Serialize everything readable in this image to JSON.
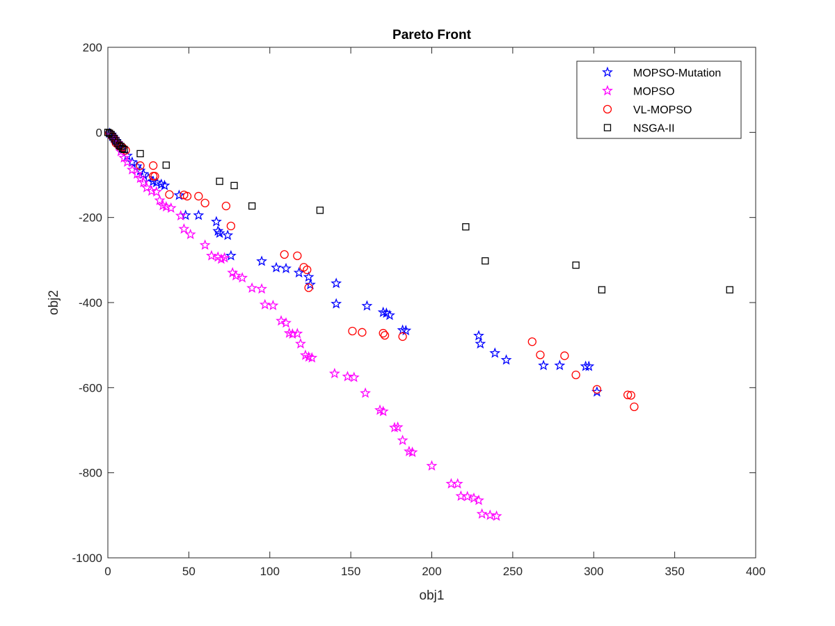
{
  "chart_data": {
    "type": "scatter",
    "title": "Pareto Front",
    "xlabel": "obj1",
    "ylabel": "obj2",
    "xlim": [
      0,
      400
    ],
    "ylim": [
      -1000,
      200
    ],
    "xticks": [
      0,
      50,
      100,
      150,
      200,
      250,
      300,
      350,
      400
    ],
    "yticks": [
      200,
      0,
      -200,
      -400,
      -600,
      -800,
      -1000
    ],
    "grid": false,
    "box": true,
    "legend": {
      "position": "top-right",
      "orientation": "vertical"
    },
    "series": [
      {
        "name": "MOPSO-Mutation",
        "marker": "star",
        "color": "#0000ff",
        "points": [
          [
            1,
            -2
          ],
          [
            2,
            -5
          ],
          [
            3,
            -10
          ],
          [
            4,
            -15
          ],
          [
            5,
            -20
          ],
          [
            6,
            -25
          ],
          [
            7,
            -30
          ],
          [
            9,
            -38
          ],
          [
            12,
            -55
          ],
          [
            15,
            -70
          ],
          [
            18,
            -80
          ],
          [
            20,
            -90
          ],
          [
            22,
            -98
          ],
          [
            25,
            -108
          ],
          [
            28,
            -115
          ],
          [
            30,
            -118
          ],
          [
            33,
            -122
          ],
          [
            35,
            -125
          ],
          [
            44,
            -148
          ],
          [
            48,
            -195
          ],
          [
            56,
            -195
          ],
          [
            67,
            -210
          ],
          [
            68,
            -232
          ],
          [
            69,
            -237
          ],
          [
            74,
            -242
          ],
          [
            76,
            -290
          ],
          [
            95,
            -303
          ],
          [
            104,
            -318
          ],
          [
            110,
            -320
          ],
          [
            118,
            -330
          ],
          [
            124,
            -340
          ],
          [
            125,
            -358
          ],
          [
            141,
            -355
          ],
          [
            141,
            -403
          ],
          [
            160,
            -408
          ],
          [
            170,
            -423
          ],
          [
            172,
            -425
          ],
          [
            174,
            -430
          ],
          [
            182,
            -465
          ],
          [
            184,
            -466
          ],
          [
            229,
            -478
          ],
          [
            230,
            -497
          ],
          [
            239,
            -519
          ],
          [
            246,
            -535
          ],
          [
            269,
            -548
          ],
          [
            279,
            -548
          ],
          [
            295,
            -550
          ],
          [
            297,
            -550
          ],
          [
            302,
            -610
          ]
        ]
      },
      {
        "name": "MOPSO",
        "marker": "star",
        "color": "#ff00ff",
        "points": [
          [
            2,
            -6
          ],
          [
            4,
            -15
          ],
          [
            6,
            -25
          ],
          [
            8,
            -45
          ],
          [
            10,
            -60
          ],
          [
            12,
            -70
          ],
          [
            15,
            -88
          ],
          [
            18,
            -98
          ],
          [
            20,
            -108
          ],
          [
            22,
            -118
          ],
          [
            24,
            -130
          ],
          [
            27,
            -138
          ],
          [
            30,
            -140
          ],
          [
            32,
            -160
          ],
          [
            34,
            -172
          ],
          [
            36,
            -175
          ],
          [
            39,
            -178
          ],
          [
            45,
            -196
          ],
          [
            47,
            -227
          ],
          [
            51,
            -240
          ],
          [
            60,
            -265
          ],
          [
            64,
            -290
          ],
          [
            68,
            -293
          ],
          [
            70,
            -298
          ],
          [
            72,
            -295
          ],
          [
            77,
            -330
          ],
          [
            79,
            -337
          ],
          [
            83,
            -342
          ],
          [
            89,
            -366
          ],
          [
            95,
            -368
          ],
          [
            97,
            -405
          ],
          [
            102,
            -407
          ],
          [
            107,
            -443
          ],
          [
            110,
            -448
          ],
          [
            112,
            -472
          ],
          [
            114,
            -474
          ],
          [
            117,
            -473
          ],
          [
            119,
            -497
          ],
          [
            122,
            -524
          ],
          [
            124,
            -528
          ],
          [
            126,
            -530
          ],
          [
            140,
            -567
          ],
          [
            148,
            -574
          ],
          [
            152,
            -576
          ],
          [
            159,
            -613
          ],
          [
            168,
            -653
          ],
          [
            170,
            -656
          ],
          [
            177,
            -694
          ],
          [
            179,
            -693
          ],
          [
            182,
            -724
          ],
          [
            186,
            -750
          ],
          [
            188,
            -752
          ],
          [
            200,
            -784
          ],
          [
            212,
            -826
          ],
          [
            216,
            -826
          ],
          [
            218,
            -855
          ],
          [
            222,
            -856
          ],
          [
            226,
            -860
          ],
          [
            229,
            -865
          ],
          [
            231,
            -897
          ],
          [
            236,
            -900
          ],
          [
            240,
            -902
          ]
        ]
      },
      {
        "name": "VL-MOPSO",
        "marker": "circle",
        "color": "#ff0000",
        "points": [
          [
            1,
            -2
          ],
          [
            3,
            -10
          ],
          [
            5,
            -25
          ],
          [
            7,
            -32
          ],
          [
            9,
            -35
          ],
          [
            11,
            -42
          ],
          [
            20,
            -78
          ],
          [
            28,
            -78
          ],
          [
            28,
            -103
          ],
          [
            29,
            -103
          ],
          [
            38,
            -146
          ],
          [
            47,
            -147
          ],
          [
            49,
            -150
          ],
          [
            56,
            -150
          ],
          [
            60,
            -166
          ],
          [
            73,
            -173
          ],
          [
            76,
            -220
          ],
          [
            109,
            -287
          ],
          [
            117,
            -290
          ],
          [
            121,
            -317
          ],
          [
            123,
            -323
          ],
          [
            124,
            -365
          ],
          [
            151,
            -467
          ],
          [
            157,
            -470
          ],
          [
            170,
            -472
          ],
          [
            171,
            -477
          ],
          [
            182,
            -480
          ],
          [
            262,
            -492
          ],
          [
            267,
            -523
          ],
          [
            282,
            -525
          ],
          [
            289,
            -570
          ],
          [
            302,
            -604
          ],
          [
            321,
            -617
          ],
          [
            323,
            -618
          ],
          [
            325,
            -645
          ]
        ]
      },
      {
        "name": "NSGA-II",
        "marker": "square",
        "color": "#000000",
        "points": [
          [
            0,
            0
          ],
          [
            1,
            -2
          ],
          [
            2,
            -5
          ],
          [
            3,
            -10
          ],
          [
            4,
            -15
          ],
          [
            5,
            -20
          ],
          [
            6,
            -25
          ],
          [
            7,
            -30
          ],
          [
            8,
            -33
          ],
          [
            9,
            -38
          ],
          [
            10,
            -40
          ],
          [
            20,
            -50
          ],
          [
            36,
            -77
          ],
          [
            69,
            -115
          ],
          [
            78,
            -125
          ],
          [
            89,
            -173
          ],
          [
            131,
            -183
          ],
          [
            221,
            -222
          ],
          [
            233,
            -302
          ],
          [
            289,
            -312
          ],
          [
            305,
            -370
          ],
          [
            384,
            -370
          ]
        ]
      }
    ]
  }
}
